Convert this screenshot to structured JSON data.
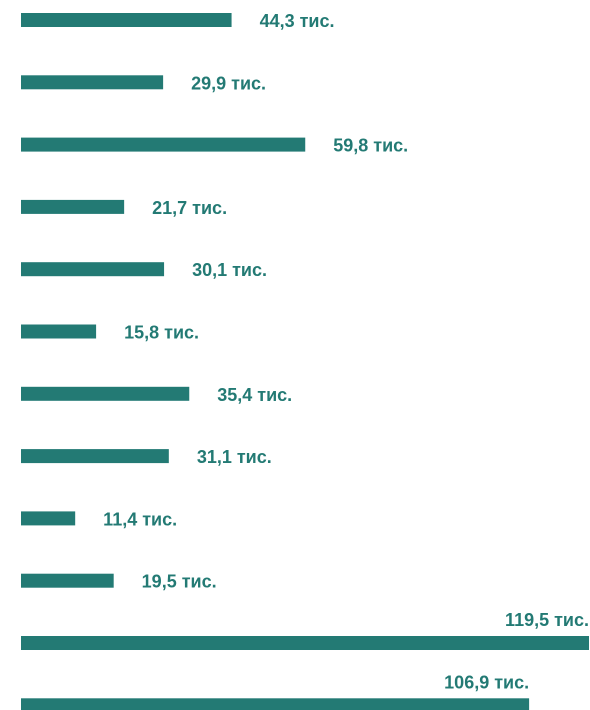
{
  "chart_data": {
    "type": "bar",
    "orientation": "horizontal",
    "bar_color": "#237A74",
    "label_color": "#237A74",
    "values": [
      44.3,
      29.9,
      59.8,
      21.7,
      30.1,
      15.8,
      35.4,
      31.1,
      11.4,
      19.5,
      119.5,
      106.9
    ],
    "labels": [
      "44,3 тис.",
      "29,9 тис.",
      "59,8 тис.",
      "21,7 тис.",
      "30,1 тис.",
      "15,8 тис.",
      "35,4 тис.",
      "31,1 тис.",
      "11,4 тис.",
      "19,5 тис.",
      "119,5 тис.",
      "106,9 тис."
    ],
    "label_placement": [
      "right",
      "right",
      "right",
      "right",
      "right",
      "right",
      "right",
      "right",
      "right",
      "right",
      "above",
      "above"
    ]
  }
}
